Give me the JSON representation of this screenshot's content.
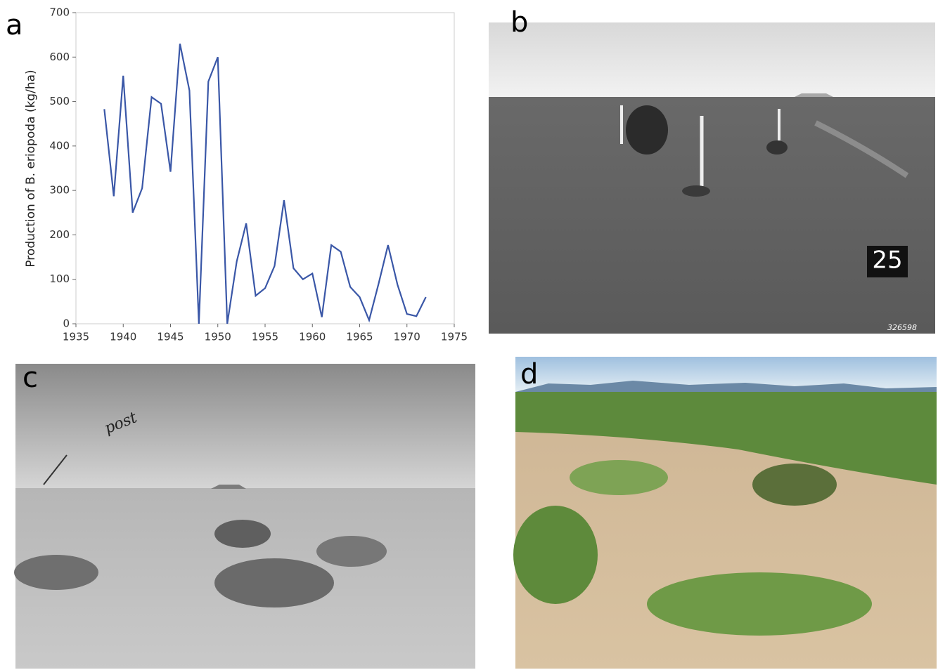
{
  "chart_data": {
    "type": "line",
    "y_label": "Production of B. eriopoda (kg/ha)",
    "x": [
      1938,
      1939,
      1940,
      1941,
      1942,
      1943,
      1944,
      1945,
      1946,
      1947,
      1948,
      1949,
      1950,
      1951,
      1952,
      1953,
      1954,
      1955,
      1956,
      1957,
      1958,
      1959,
      1960,
      1961,
      1962,
      1963,
      1964,
      1965,
      1966,
      1967,
      1968,
      1969,
      1970,
      1971,
      1972
    ],
    "values": [
      483,
      287,
      558,
      250,
      305,
      510,
      495,
      342,
      630,
      525,
      0,
      545,
      600,
      0,
      140,
      226,
      63,
      80,
      130,
      278,
      125,
      100,
      113,
      15,
      177,
      162,
      83,
      60,
      8,
      90,
      177,
      88,
      22,
      17,
      60
    ],
    "color": "#3a57a7",
    "xlim": [
      1935,
      1975
    ],
    "xticks": [
      1935,
      1940,
      1945,
      1950,
      1955,
      1960,
      1965,
      1970,
      1975
    ],
    "ylim": [
      0,
      700
    ],
    "yticks": [
      0,
      100,
      200,
      300,
      400,
      500,
      600,
      700
    ],
    "grid": false
  },
  "panels": [
    "a",
    "b",
    "c",
    "d"
  ],
  "photo_texts": {
    "b": [
      "25",
      "326598"
    ],
    "c": [
      "post"
    ]
  }
}
